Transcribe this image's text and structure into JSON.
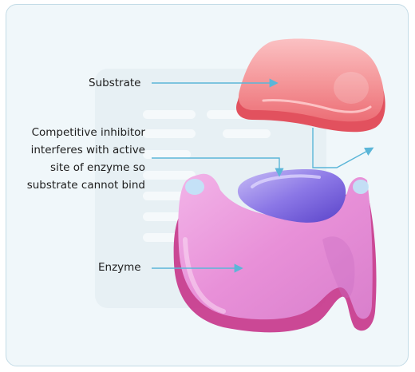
{
  "diagram": {
    "labels": {
      "substrate": "Substrate",
      "inhibitor_lines": [
        "Competitive inhibitor",
        "interferes with active",
        "site of enzyme so",
        "substrate cannot bind"
      ],
      "enzyme": "Enzyme"
    },
    "colors": {
      "background": "#f0f7fa",
      "border": "#c3dbe6",
      "arrow": "#5bb6d8",
      "substrate": "#f07a80",
      "inhibitor": "#7a63dd",
      "enzyme": "#ea8fd8"
    }
  }
}
